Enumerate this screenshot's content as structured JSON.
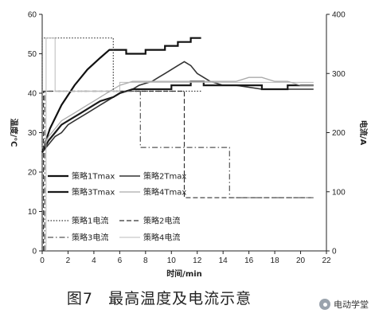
{
  "caption": {
    "figure_number": "图7",
    "text": "最高温度及电流示意"
  },
  "watermark": {
    "text": "电动学堂",
    "icon": "chat-bubble-icon"
  },
  "chart_data": {
    "type": "line",
    "xlabel": "时间/min",
    "ylabel_left": "温度/℃",
    "ylabel_right": "电流/A",
    "x_range": [
      0,
      22
    ],
    "x_ticks": [
      0,
      2,
      4,
      6,
      8,
      10,
      12,
      14,
      16,
      18,
      20,
      22
    ],
    "y_left_range": [
      0,
      60
    ],
    "y_left_ticks": [
      0,
      10,
      20,
      30,
      40,
      50,
      60
    ],
    "y_right_range": [
      0,
      400
    ],
    "y_right_ticks": [
      0,
      100,
      200,
      300,
      400
    ],
    "grid": false,
    "legend_position": "lower-left, inside plot",
    "series": [
      {
        "name": "策略1Tmax",
        "axis": "left",
        "style": "solid-thick",
        "color": "#111111",
        "x": [
          0,
          0.6,
          1.5,
          2.5,
          3.5,
          4.5,
          5.2,
          5.5,
          6.5,
          6.5,
          8.0,
          8.0,
          9.5,
          9.5,
          10.5,
          10.5,
          11.5,
          11.5,
          12.3
        ],
        "y": [
          25,
          31,
          37,
          42,
          46,
          49,
          51,
          51,
          51,
          50,
          50,
          51,
          51,
          52,
          52,
          53,
          53,
          54,
          54
        ]
      },
      {
        "name": "策略2Tmax",
        "axis": "left",
        "style": "solid-medium",
        "color": "#333333",
        "x": [
          0,
          0.5,
          1,
          1.5,
          2,
          2.5,
          3,
          3.5,
          4,
          4.5,
          5,
          5.5,
          6,
          6.5,
          7,
          7.5,
          8,
          8.5,
          9,
          9.5,
          10,
          10.5,
          11,
          11.5,
          12,
          12.5,
          13,
          14,
          15,
          17,
          19,
          20,
          21
        ],
        "y": [
          25,
          27,
          29,
          30,
          32,
          33,
          34,
          35,
          36,
          37,
          38,
          39,
          40,
          40.5,
          41,
          42,
          42.5,
          43,
          44,
          45,
          46,
          47,
          48,
          47,
          45,
          44,
          43,
          42,
          42,
          41,
          41,
          41,
          41
        ]
      },
      {
        "name": "策略3Tmax",
        "axis": "left",
        "style": "solid-thick",
        "color": "#1a1a1a",
        "x": [
          0,
          0.5,
          1,
          1.5,
          2,
          2.5,
          3,
          3.5,
          4,
          4.5,
          5,
          5.5,
          6,
          6.5,
          7,
          7.5,
          8,
          10,
          10,
          11.5,
          11.5,
          12.5,
          12.5,
          14,
          14,
          17,
          17,
          19,
          19,
          21
        ],
        "y": [
          25,
          28,
          30,
          32,
          33,
          34,
          35,
          36,
          37,
          38,
          38.5,
          39,
          40,
          40.5,
          41,
          41,
          41,
          41,
          42,
          42,
          43,
          43,
          42,
          42,
          42,
          42,
          41,
          41,
          42,
          42
        ]
      },
      {
        "name": "策略4Tmax",
        "axis": "left",
        "style": "solid-light",
        "color": "#aaaaaa",
        "x": [
          0,
          0.5,
          1,
          1.5,
          2,
          2.5,
          3,
          3.5,
          4,
          4.5,
          5,
          5.5,
          6,
          7,
          8,
          9,
          10,
          10.5,
          11,
          12,
          13,
          14,
          15,
          16,
          17,
          18,
          19,
          20,
          21
        ],
        "y": [
          26,
          29,
          31,
          33,
          34,
          35,
          36,
          37,
          38,
          39,
          40,
          41,
          42,
          43,
          43,
          43,
          43,
          43,
          43,
          43,
          43,
          43,
          43,
          44,
          44,
          43,
          43,
          42,
          42
        ]
      },
      {
        "name": "策略1电流",
        "axis": "right",
        "style": "dotted",
        "color": "#333333",
        "x": [
          0,
          0,
          5.5,
          5.5,
          12.3
        ],
        "y": [
          0,
          360,
          360,
          270,
          270
        ]
      },
      {
        "name": "策略2电流",
        "axis": "right",
        "style": "dashed",
        "color": "#333333",
        "x": [
          0.1,
          0.1,
          11.0,
          11.0,
          20.8
        ],
        "y": [
          0,
          270,
          270,
          90,
          90
        ]
      },
      {
        "name": "策略3电流",
        "axis": "right",
        "style": "dash-dot",
        "color": "#555555",
        "x": [
          0.2,
          0.2,
          7.6,
          7.6,
          14.5,
          14.5,
          21
        ],
        "y": [
          0,
          270,
          270,
          175,
          175,
          90,
          90
        ]
      },
      {
        "name": "策略4电流",
        "axis": "right",
        "style": "solid-thin",
        "color": "#bbbbbb",
        "x": [
          0.3,
          0.3,
          1.0,
          1.0,
          6.0,
          6.0,
          21
        ],
        "y": [
          0,
          360,
          360,
          270,
          270,
          285,
          285
        ]
      }
    ]
  }
}
